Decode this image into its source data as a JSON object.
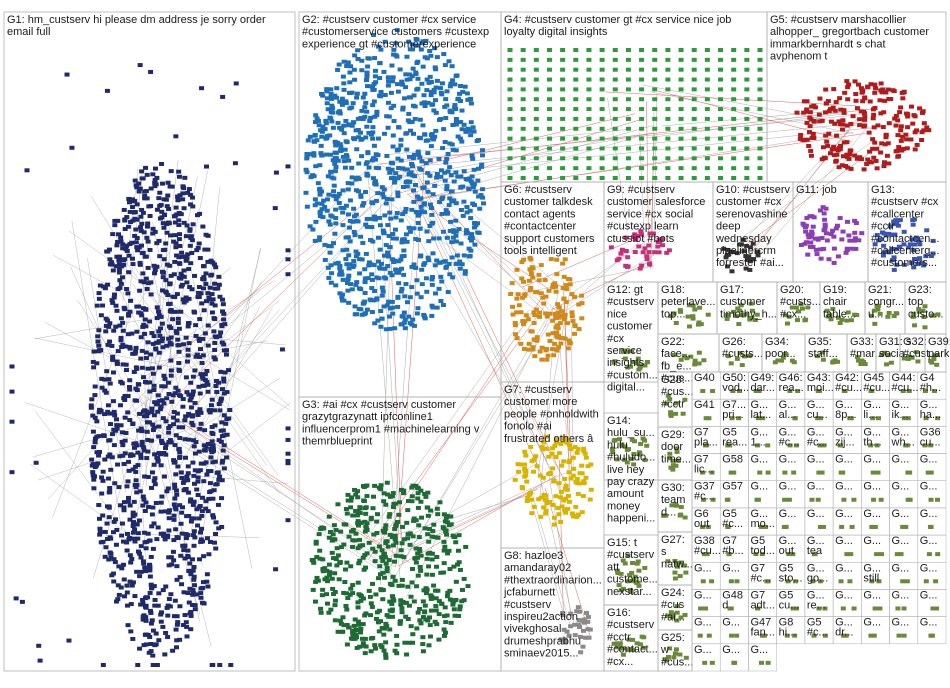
{
  "colors": {
    "G1": "#1f2a6b",
    "G2": "#1e6fb8",
    "G3": "#1e6b35",
    "G4": "#2e9a3c",
    "G5": "#b01b1b",
    "G6": "#d08a1c",
    "G7": "#d9b300",
    "G8": "#8a8a8a",
    "G9": "#c2317a",
    "G10": "#333333",
    "G11": "#8b3fb3",
    "G13": "#3a55b0",
    "small": "#6a8a3a",
    "edge": "#9a9a9a",
    "edge_red": "#d83a3a"
  },
  "groups": [
    {
      "id": "G1",
      "label": [
        "G1: hm_custserv hi please dm address je sorry order",
        "email full"
      ]
    },
    {
      "id": "G2",
      "label": [
        "G2: #custserv customer #cx service",
        "#customerservice customers #custexp",
        "experience gt #customerexperience"
      ]
    },
    {
      "id": "G3",
      "label": [
        "G3: #ai #cx #custserv customer",
        "grazytgrazynatt ipfconline1",
        "influencerprom1 #machinelearning v",
        "themrblueprint"
      ]
    },
    {
      "id": "G4",
      "label": [
        "G4: #custserv customer gt #cx service nice job",
        "loyalty digital insights"
      ]
    },
    {
      "id": "G5",
      "label": [
        "G5: #custserv marshacollier",
        "alhopper_ gregortbach customer",
        "immarkbernhardt s chat",
        "avphenom t"
      ]
    },
    {
      "id": "G6",
      "label": [
        "G6: #custserv",
        "customer talkdesk",
        "contact agents",
        "#contactcenter",
        "support customers",
        "tools intelligent"
      ]
    },
    {
      "id": "G9",
      "label": [
        "G9: #custserv",
        "customer salesforce",
        "service #cx social",
        "#custexp learn",
        "ctussiot #bots"
      ]
    },
    {
      "id": "G10",
      "label": [
        "G10: #custserv",
        "customer #cx",
        "serenovashine",
        "deep",
        "wednesday",
        "pipelinercrm",
        "forrester #ai..."
      ]
    },
    {
      "id": "G11",
      "label": [
        "G11: job"
      ]
    },
    {
      "id": "G13",
      "label": [
        "G13:",
        "#custserv #cx",
        "#callcenter",
        "#cctr",
        "#contactcen...",
        "#callcenterg...",
        "#customers..."
      ]
    },
    {
      "id": "G12",
      "label": [
        "G12: gt",
        "#custserv",
        "nice",
        "customer",
        "#cx",
        "service",
        "insights",
        "#custom...",
        "digital..."
      ]
    },
    {
      "id": "G18",
      "label": [
        "G18:",
        "peterlave...",
        "top..."
      ]
    },
    {
      "id": "G17",
      "label": [
        "G17:",
        "customer",
        "timothy_h..."
      ]
    },
    {
      "id": "G20",
      "label": [
        "G20:",
        "#custs...",
        "#cx..."
      ]
    },
    {
      "id": "G19",
      "label": [
        "G19:",
        "chair",
        "table..."
      ]
    },
    {
      "id": "G21",
      "label": [
        "G21:",
        "congr...",
        "u..."
      ]
    },
    {
      "id": "G23",
      "label": [
        "G23:",
        "top",
        "custo..."
      ]
    },
    {
      "id": "G7",
      "label": [
        "G7: #custserv",
        "customer more",
        "people #onholdwith",
        "fonolo #ai",
        "frustrated others â"
      ]
    },
    {
      "id": "G14",
      "label": [
        "G14:",
        "hulu_su...",
        "hulu",
        "#huludo...",
        "live hey",
        "pay crazy",
        "amount",
        "money",
        "happeni..."
      ]
    },
    {
      "id": "G8",
      "label": [
        "G8: hazloe3",
        "amandaray02",
        "#thextraordinarion...",
        "jcfaburnett",
        "#custserv",
        "inspireu2action",
        "vivekghosal",
        "drumeshprabhu",
        "sminaev2015..."
      ]
    },
    {
      "id": "G15",
      "label": [
        "G15: t",
        "#custserv",
        "att",
        "custome...",
        "nexstar..."
      ]
    },
    {
      "id": "G16",
      "label": [
        "G16:",
        "#custserv",
        "#cctr",
        "#contact...",
        "#cx..."
      ]
    },
    {
      "id": "G22",
      "label": [
        "G22:",
        "face...",
        "fb_e...",
        "#cus..."
      ]
    },
    {
      "id": "G26",
      "label": [
        "G26:",
        "#custs..."
      ]
    },
    {
      "id": "G34",
      "label": [
        "G34:",
        "poor..."
      ]
    },
    {
      "id": "G35",
      "label": [
        "G35:",
        "staff..."
      ]
    },
    {
      "id": "G33",
      "label": [
        "G33:",
        "#mar..."
      ]
    },
    {
      "id": "G31",
      "label": [
        "G31: s",
        "socia..."
      ]
    },
    {
      "id": "G32",
      "label": [
        "G32:",
        "#cust..."
      ]
    },
    {
      "id": "G39",
      "label": [
        "G39:",
        "park..."
      ]
    },
    {
      "id": "G28",
      "label": [
        "G28:",
        "#cus...",
        "#cctr"
      ]
    },
    {
      "id": "G29",
      "label": [
        "G29:",
        "door",
        "time..."
      ]
    },
    {
      "id": "G30",
      "label": [
        "G30:",
        "team",
        "d..."
      ]
    },
    {
      "id": "G27",
      "label": [
        "G27:",
        "s",
        "natw..."
      ]
    },
    {
      "id": "G24",
      "label": [
        "G24:",
        "#cus",
        "#ai..."
      ]
    },
    {
      "id": "G25",
      "label": [
        "G25:",
        "w",
        "#cus..."
      ]
    }
  ],
  "small_cells": [
    {
      "lines": [
        "G40"
      ]
    },
    {
      "lines": [
        "G50:",
        "vod..."
      ]
    },
    {
      "lines": [
        "G49:",
        "dar..."
      ]
    },
    {
      "lines": [
        "G46:",
        "rea..."
      ]
    },
    {
      "lines": [
        "G43:",
        "moi..."
      ]
    },
    {
      "lines": [
        "G42:",
        "#cu..."
      ]
    },
    {
      "lines": [
        "G45",
        "#cu..."
      ]
    },
    {
      "lines": [
        "G44:",
        "#cu..."
      ]
    },
    {
      "lines": [
        "G4",
        "#h..."
      ]
    },
    {
      "lines": [
        "G41"
      ]
    },
    {
      "lines": [
        "G7...",
        "pri..."
      ]
    },
    {
      "lines": [
        "G...",
        "lat..."
      ]
    },
    {
      "lines": [
        "G...",
        "al..."
      ]
    },
    {
      "lines": [
        "G...",
        "cu..."
      ]
    },
    {
      "lines": [
        "G...",
        "8p..."
      ]
    },
    {
      "lines": [
        "G...",
        "li..."
      ]
    },
    {
      "lines": [
        "G...",
        "ik..."
      ]
    },
    {
      "lines": [
        "G...",
        "ha..."
      ]
    },
    {
      "lines": [
        "G7",
        "pla..."
      ]
    },
    {
      "lines": [
        "G5",
        "rea..."
      ]
    },
    {
      "lines": [
        "G...",
        "1..."
      ]
    },
    {
      "lines": [
        "G...",
        "#c..."
      ]
    },
    {
      "lines": [
        "G...",
        "#c..."
      ]
    },
    {
      "lines": [
        "G...",
        "zij..."
      ]
    },
    {
      "lines": [
        "G...",
        "th..."
      ]
    },
    {
      "lines": [
        "G...",
        "wh..."
      ]
    },
    {
      "lines": [
        "G36",
        "cu..."
      ]
    },
    {
      "lines": [
        "G7",
        "lic..."
      ]
    },
    {
      "lines": [
        "G58"
      ]
    },
    {
      "lines": [
        "G..."
      ]
    },
    {
      "lines": [
        "G..."
      ]
    },
    {
      "lines": [
        "G..."
      ]
    },
    {
      "lines": [
        "G..."
      ]
    },
    {
      "lines": [
        "G..."
      ]
    },
    {
      "lines": [
        "G..."
      ]
    },
    {
      "lines": [
        "G..."
      ]
    },
    {
      "lines": [
        "G37",
        "#c..."
      ]
    },
    {
      "lines": [
        "G57"
      ]
    },
    {
      "lines": [
        "G..."
      ]
    },
    {
      "lines": [
        "G..."
      ]
    },
    {
      "lines": [
        "G..."
      ]
    },
    {
      "lines": [
        "G..."
      ]
    },
    {
      "lines": [
        "G..."
      ]
    },
    {
      "lines": [
        "G..."
      ]
    },
    {
      "lines": [
        "G..."
      ]
    },
    {
      "lines": [
        "G6",
        "out"
      ]
    },
    {
      "lines": [
        "G5",
        "#c..."
      ]
    },
    {
      "lines": [
        "G...",
        "mo..."
      ]
    },
    {
      "lines": [
        "G..."
      ]
    },
    {
      "lines": [
        "G..."
      ]
    },
    {
      "lines": [
        "G..."
      ]
    },
    {
      "lines": [
        "G..."
      ]
    },
    {
      "lines": [
        "G..."
      ]
    },
    {
      "lines": [
        "G..."
      ]
    },
    {
      "lines": [
        "G38",
        "#cu..."
      ]
    },
    {
      "lines": [
        "G7",
        "#b..."
      ]
    },
    {
      "lines": [
        "G5",
        "tod..."
      ]
    },
    {
      "lines": [
        "G...",
        "out"
      ]
    },
    {
      "lines": [
        "G...",
        "tea"
      ]
    },
    {
      "lines": [
        "G..."
      ]
    },
    {
      "lines": [
        "G..."
      ]
    },
    {
      "lines": [
        "G..."
      ]
    },
    {
      "lines": [
        "G..."
      ]
    },
    {
      "lines": [
        "G..."
      ]
    },
    {
      "lines": [
        "G..."
      ]
    },
    {
      "lines": [
        "G7",
        "#c..."
      ]
    },
    {
      "lines": [
        "G5",
        "sto..."
      ]
    },
    {
      "lines": [
        "G...",
        "go..."
      ]
    },
    {
      "lines": [
        "G..."
      ]
    },
    {
      "lines": [
        "G...",
        "still"
      ]
    },
    {
      "lines": [
        "G..."
      ]
    },
    {
      "lines": [
        "G..."
      ]
    },
    {
      "lines": [
        "G..."
      ]
    },
    {
      "lines": [
        "G48",
        "d"
      ]
    },
    {
      "lines": [
        "G7",
        "adt..."
      ]
    },
    {
      "lines": [
        "G5",
        "cu..."
      ]
    },
    {
      "lines": [
        "G...",
        "re..."
      ]
    },
    {
      "lines": [
        "G..."
      ]
    },
    {
      "lines": [
        "G..."
      ]
    },
    {
      "lines": [
        "G..."
      ]
    },
    {
      "lines": [
        "G..."
      ]
    },
    {
      "lines": [
        "G..."
      ]
    },
    {
      "lines": [
        "G..."
      ]
    },
    {
      "lines": [
        "G47",
        "fan..."
      ]
    },
    {
      "lines": [
        "G8",
        "hi..."
      ]
    },
    {
      "lines": [
        "G5",
        "#c..."
      ]
    },
    {
      "lines": [
        "G...",
        "dr..."
      ]
    },
    {
      "lines": [
        "G..."
      ]
    },
    {
      "lines": [
        "G..."
      ]
    },
    {
      "lines": [
        "G..."
      ]
    },
    {
      "lines": [
        "G..."
      ]
    },
    {
      "lines": [
        "G..."
      ]
    },
    {
      "lines": [
        "G..."
      ]
    }
  ]
}
